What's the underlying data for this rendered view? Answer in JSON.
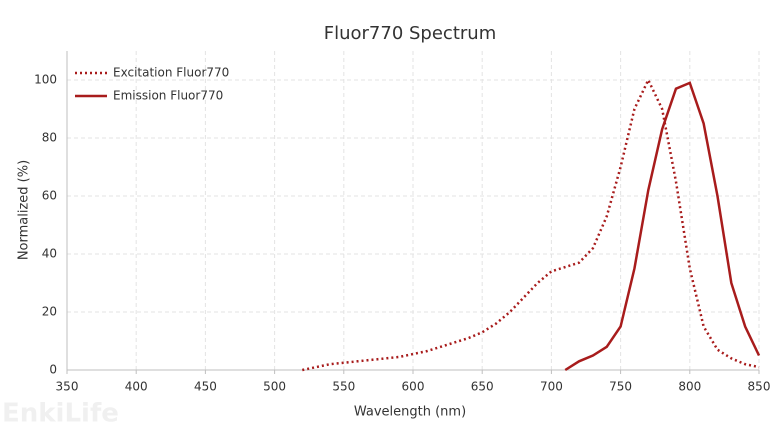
{
  "chart_data": {
    "type": "line",
    "title": "Fluor770  Spectrum",
    "xlabel": "Wavelength (nm)",
    "ylabel": "Normalized (%)",
    "watermark": "EnkiLife",
    "x": [
      510,
      520,
      530,
      540,
      550,
      560,
      570,
      580,
      590,
      600,
      610,
      620,
      630,
      640,
      650,
      660,
      670,
      680,
      690,
      700,
      710,
      720,
      730,
      740,
      750,
      760,
      770,
      780,
      790,
      800,
      810,
      820,
      830,
      840,
      850
    ],
    "series": [
      {
        "name": "Excitation Fluor770",
        "color": "#a81c1c",
        "style": "dotted",
        "values": [
          null,
          0,
          1,
          2,
          2.5,
          3,
          3.5,
          4,
          4.5,
          5.5,
          6.5,
          8,
          9.5,
          11,
          13,
          16,
          20,
          25,
          30,
          34,
          35.5,
          37,
          42,
          53,
          70,
          90,
          100,
          90,
          65,
          35,
          15,
          7,
          4,
          2,
          1
        ]
      },
      {
        "name": "Emission Fluor770",
        "color": "#a81c1c",
        "style": "solid",
        "values": [
          null,
          null,
          null,
          null,
          null,
          null,
          null,
          null,
          null,
          null,
          null,
          null,
          null,
          null,
          null,
          null,
          null,
          null,
          null,
          null,
          0,
          3,
          5,
          8,
          15,
          35,
          62,
          83,
          97,
          99,
          85,
          60,
          30,
          15,
          5
        ]
      }
    ],
    "xlim": [
      350,
      850
    ],
    "xticks": [
      350,
      400,
      450,
      500,
      550,
      600,
      650,
      700,
      750,
      800,
      850
    ],
    "ylim": [
      0,
      110
    ],
    "yticks": [
      0,
      20,
      40,
      60,
      80,
      100
    ],
    "grid": true,
    "legend": "top-left"
  }
}
